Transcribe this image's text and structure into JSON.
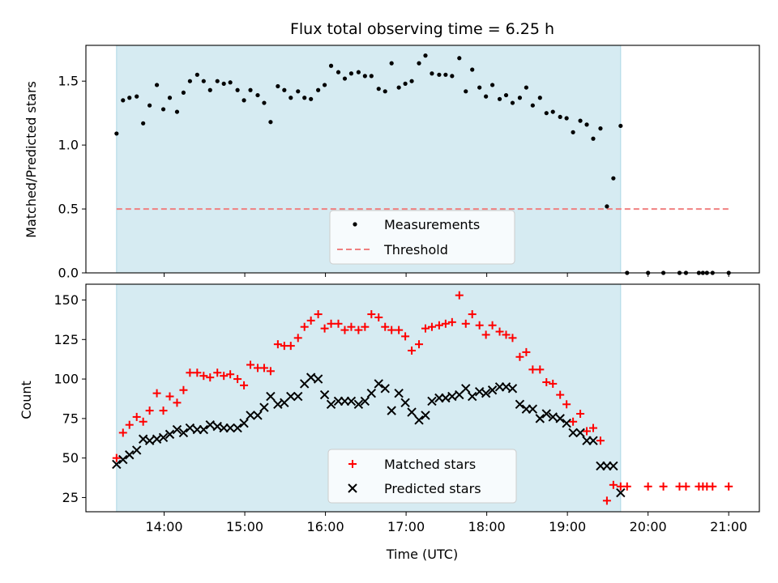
{
  "chart_data": [
    {
      "type": "scatter",
      "title": "Flux total observing time = 6.25 h",
      "xlabel": "",
      "ylabel": "Matched/Predicted stars",
      "ylim": [
        0,
        1.78
      ],
      "xlim_hours": [
        13.03,
        21.38
      ],
      "yticks": [
        0.0,
        0.5,
        1.0,
        1.5
      ],
      "ytick_labels": [
        "0.0",
        "0.5",
        "1.0",
        "1.5"
      ],
      "grid": false,
      "legend_position": "lower center",
      "shaded_interval_hours": [
        13.41,
        19.66
      ],
      "shade_color": "#add8e6",
      "series": [
        {
          "name": "Measurements",
          "marker": "dot",
          "color": "#000000",
          "x": [
            13.41,
            13.49,
            13.57,
            13.66,
            13.74,
            13.82,
            13.91,
            13.99,
            14.07,
            14.16,
            14.24,
            14.32,
            14.41,
            14.49,
            14.57,
            14.66,
            14.74,
            14.82,
            14.91,
            14.99,
            15.07,
            15.16,
            15.24,
            15.32,
            15.41,
            15.49,
            15.57,
            15.66,
            15.74,
            15.82,
            15.91,
            15.99,
            16.07,
            16.16,
            16.24,
            16.32,
            16.41,
            16.49,
            16.57,
            16.66,
            16.74,
            16.82,
            16.91,
            16.99,
            17.07,
            17.16,
            17.24,
            17.32,
            17.41,
            17.49,
            17.57,
            17.66,
            17.74,
            17.82,
            17.91,
            17.99,
            18.07,
            18.16,
            18.24,
            18.32,
            18.41,
            18.49,
            18.57,
            18.66,
            18.74,
            18.82,
            18.91,
            18.99,
            19.07,
            19.16,
            19.24,
            19.32,
            19.41,
            19.49,
            19.57,
            19.66,
            19.74,
            20.0,
            20.19,
            20.39,
            20.47,
            20.63,
            20.68,
            20.73,
            20.8,
            21.0
          ],
          "y": [
            1.09,
            1.35,
            1.37,
            1.38,
            1.17,
            1.31,
            1.47,
            1.28,
            1.37,
            1.26,
            1.41,
            1.5,
            1.55,
            1.5,
            1.43,
            1.5,
            1.48,
            1.49,
            1.43,
            1.35,
            1.43,
            1.39,
            1.33,
            1.18,
            1.46,
            1.43,
            1.37,
            1.42,
            1.37,
            1.36,
            1.43,
            1.47,
            1.62,
            1.57,
            1.52,
            1.56,
            1.57,
            1.54,
            1.54,
            1.44,
            1.42,
            1.64,
            1.45,
            1.48,
            1.5,
            1.64,
            1.7,
            1.56,
            1.55,
            1.55,
            1.54,
            1.68,
            1.42,
            1.59,
            1.45,
            1.38,
            1.47,
            1.36,
            1.39,
            1.33,
            1.37,
            1.45,
            1.31,
            1.37,
            1.25,
            1.26,
            1.22,
            1.21,
            1.1,
            1.19,
            1.16,
            1.05,
            1.13,
            0.52,
            0.74,
            1.15,
            0.0,
            0.0,
            0.0,
            0.0,
            0.0,
            0.0,
            0.0,
            0.0,
            0.0,
            0.0
          ]
        },
        {
          "name": "Threshold",
          "style": "dashed",
          "color": "#f08080",
          "x": [
            13.41,
            21.0
          ],
          "y": [
            0.5,
            0.5
          ]
        }
      ]
    },
    {
      "type": "scatter",
      "title": "",
      "xlabel": "Time (UTC)",
      "ylabel": "Count",
      "ylim": [
        16,
        160
      ],
      "xlim_hours": [
        13.03,
        21.38
      ],
      "yticks": [
        25,
        50,
        75,
        100,
        125,
        150
      ],
      "ytick_labels": [
        "25",
        "50",
        "75",
        "100",
        "125",
        "150"
      ],
      "xticks_hours": [
        14,
        15,
        16,
        17,
        18,
        19,
        20,
        21
      ],
      "xtick_labels": [
        "14:00",
        "15:00",
        "16:00",
        "17:00",
        "18:00",
        "19:00",
        "20:00",
        "21:00"
      ],
      "grid": false,
      "legend_position": "lower center",
      "shaded_interval_hours": [
        13.41,
        19.66
      ],
      "shade_color": "#add8e6",
      "series": [
        {
          "name": "Matched stars",
          "marker": "plus",
          "color": "#ff0000",
          "x": [
            13.41,
            13.49,
            13.57,
            13.66,
            13.74,
            13.82,
            13.91,
            13.99,
            14.07,
            14.16,
            14.24,
            14.32,
            14.41,
            14.49,
            14.57,
            14.66,
            14.74,
            14.82,
            14.91,
            14.99,
            15.07,
            15.16,
            15.24,
            15.32,
            15.41,
            15.49,
            15.57,
            15.66,
            15.74,
            15.82,
            15.91,
            15.99,
            16.07,
            16.16,
            16.24,
            16.32,
            16.41,
            16.49,
            16.57,
            16.66,
            16.74,
            16.82,
            16.91,
            16.99,
            17.07,
            17.16,
            17.24,
            17.32,
            17.41,
            17.49,
            17.57,
            17.66,
            17.74,
            17.82,
            17.91,
            17.99,
            18.07,
            18.16,
            18.24,
            18.32,
            18.41,
            18.49,
            18.57,
            18.66,
            18.74,
            18.82,
            18.91,
            18.99,
            19.07,
            19.16,
            19.24,
            19.32,
            19.41,
            19.49,
            19.57,
            19.66,
            19.74,
            20.0,
            20.19,
            20.39,
            20.47,
            20.63,
            20.68,
            20.73,
            20.8,
            21.0
          ],
          "y": [
            50,
            66,
            71,
            76,
            73,
            80,
            91,
            80,
            89,
            85,
            93,
            104,
            104,
            102,
            101,
            104,
            102,
            103,
            100,
            96,
            109,
            107,
            107,
            105,
            122,
            121,
            121,
            126,
            133,
            137,
            141,
            132,
            135,
            135,
            131,
            133,
            131,
            133,
            141,
            139,
            133,
            131,
            131,
            127,
            118,
            122,
            132,
            133,
            134,
            135,
            136,
            153,
            135,
            141,
            134,
            128,
            134,
            130,
            128,
            126,
            114,
            117,
            106,
            106,
            98,
            97,
            90,
            84,
            73,
            78,
            67,
            69,
            61,
            23,
            33,
            32,
            32,
            32,
            32,
            32,
            32,
            32,
            32,
            32,
            32,
            32
          ]
        },
        {
          "name": "Predicted stars",
          "marker": "x",
          "color": "#000000",
          "x": [
            13.41,
            13.49,
            13.57,
            13.66,
            13.74,
            13.82,
            13.91,
            13.99,
            14.07,
            14.16,
            14.24,
            14.32,
            14.41,
            14.49,
            14.57,
            14.66,
            14.74,
            14.82,
            14.91,
            14.99,
            15.07,
            15.16,
            15.24,
            15.32,
            15.41,
            15.49,
            15.57,
            15.66,
            15.74,
            15.82,
            15.91,
            15.99,
            16.07,
            16.16,
            16.24,
            16.32,
            16.41,
            16.49,
            16.57,
            16.66,
            16.74,
            16.82,
            16.91,
            16.99,
            17.07,
            17.16,
            17.24,
            17.32,
            17.41,
            17.49,
            17.57,
            17.66,
            17.74,
            17.82,
            17.91,
            17.99,
            18.07,
            18.16,
            18.24,
            18.32,
            18.41,
            18.49,
            18.57,
            18.66,
            18.74,
            18.82,
            18.91,
            18.99,
            19.07,
            19.16,
            19.24,
            19.32,
            19.41,
            19.49,
            19.57,
            19.66
          ],
          "y": [
            46,
            49,
            52,
            55,
            62,
            61,
            62,
            63,
            65,
            68,
            66,
            69,
            68,
            68,
            71,
            70,
            69,
            69,
            69,
            72,
            77,
            77,
            82,
            89,
            84,
            85,
            89,
            89,
            97,
            101,
            100,
            90,
            84,
            86,
            86,
            86,
            84,
            86,
            91,
            97,
            94,
            80,
            91,
            85,
            79,
            74,
            77,
            86,
            88,
            88,
            89,
            90,
            94,
            89,
            92,
            91,
            93,
            95,
            95,
            94,
            84,
            81,
            81,
            75,
            78,
            76,
            75,
            72,
            66,
            66,
            61,
            61,
            45,
            45,
            45,
            28
          ]
        }
      ]
    }
  ]
}
